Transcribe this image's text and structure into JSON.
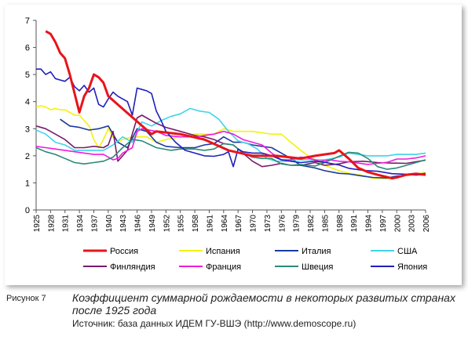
{
  "figure_label": "Рисунок 7",
  "caption": "Коэффициент суммарной рождаемости в некоторых развитых странах после 1925 года",
  "source": "Источник: база данных ИДЕМ ГУ-ВШЭ (http://www.demoscope.ru)",
  "chart_data": {
    "type": "line",
    "title": "",
    "xlabel": "",
    "ylabel": "",
    "xlim": [
      1925,
      2006
    ],
    "ylim": [
      0,
      7
    ],
    "yticks": [
      0,
      1,
      2,
      3,
      4,
      5,
      6,
      7
    ],
    "xticks": [
      1925,
      1928,
      1931,
      1934,
      1937,
      1940,
      1943,
      1946,
      1949,
      1952,
      1955,
      1958,
      1961,
      1964,
      1967,
      1970,
      1973,
      1976,
      1979,
      1982,
      1985,
      1988,
      1991,
      1994,
      1997,
      2000,
      2003,
      2006
    ],
    "grid": false,
    "legend_position": "bottom",
    "series": [
      {
        "name": "Россия",
        "color": "#e8141b",
        "width": 3,
        "x": [
          1927,
          1928,
          1929,
          1930,
          1931,
          1932,
          1933,
          1934,
          1935,
          1936,
          1937,
          1938,
          1939,
          1940,
          1949,
          1950,
          1955,
          1960,
          1965,
          1970,
          1975,
          1980,
          1983,
          1985,
          1987,
          1988,
          1990,
          1992,
          1994,
          1996,
          1999,
          2000,
          2002,
          2004,
          2006
        ],
        "y": [
          6.6,
          6.5,
          6.2,
          5.8,
          5.6,
          5.0,
          4.3,
          3.6,
          4.2,
          4.5,
          5.0,
          4.9,
          4.7,
          4.2,
          2.8,
          2.9,
          2.8,
          2.6,
          2.2,
          2.0,
          2.0,
          1.9,
          2.0,
          2.05,
          2.1,
          2.2,
          1.9,
          1.55,
          1.4,
          1.3,
          1.17,
          1.2,
          1.3,
          1.34,
          1.3
        ]
      },
      {
        "name": "Испания",
        "color": "#f2f20d",
        "width": 1.6,
        "x": [
          1925,
          1926,
          1927,
          1928,
          1929,
          1930,
          1931,
          1932,
          1933,
          1934,
          1935,
          1936,
          1937,
          1938,
          1939,
          1940,
          1941,
          1942,
          1943,
          1945,
          1948,
          1950,
          1952,
          1955,
          1958,
          1960,
          1962,
          1964,
          1966,
          1968,
          1970,
          1972,
          1974,
          1976,
          1978,
          1980,
          1982,
          1985,
          1988,
          1990,
          1993,
          1995,
          1998,
          2000,
          2003,
          2006
        ],
        "y": [
          3.8,
          3.85,
          3.8,
          3.7,
          3.75,
          3.7,
          3.7,
          3.6,
          3.5,
          3.5,
          3.3,
          3.1,
          2.6,
          2.3,
          2.6,
          3.0,
          2.7,
          2.5,
          2.6,
          2.7,
          2.7,
          2.5,
          2.6,
          2.7,
          2.8,
          2.8,
          2.8,
          3.0,
          2.9,
          2.9,
          2.9,
          2.85,
          2.8,
          2.8,
          2.5,
          2.2,
          1.95,
          1.65,
          1.45,
          1.36,
          1.27,
          1.17,
          1.15,
          1.22,
          1.3,
          1.38
        ]
      },
      {
        "name": "Италия",
        "color": "#1a3a9e",
        "width": 1.6,
        "x": [
          1930,
          1932,
          1934,
          1936,
          1938,
          1940,
          1942,
          1944,
          1946,
          1948,
          1950,
          1952,
          1955,
          1958,
          1960,
          1962,
          1964,
          1966,
          1968,
          1970,
          1972,
          1974,
          1976,
          1978,
          1980,
          1983,
          1985,
          1988,
          1990,
          1993,
          1995,
          1998,
          2000,
          2003,
          2006
        ],
        "y": [
          3.35,
          3.1,
          3.05,
          2.95,
          3.0,
          3.1,
          2.5,
          2.3,
          3.0,
          2.9,
          2.5,
          2.35,
          2.3,
          2.3,
          2.4,
          2.45,
          2.7,
          2.5,
          2.5,
          2.4,
          2.35,
          2.3,
          2.1,
          1.9,
          1.65,
          1.55,
          1.45,
          1.35,
          1.33,
          1.25,
          1.2,
          1.18,
          1.25,
          1.3,
          1.35
        ]
      },
      {
        "name": "США",
        "color": "#3fd4ea",
        "width": 1.6,
        "x": [
          1925,
          1927,
          1929,
          1931,
          1933,
          1935,
          1937,
          1939,
          1941,
          1943,
          1945,
          1947,
          1949,
          1951,
          1953,
          1955,
          1957,
          1959,
          1961,
          1963,
          1965,
          1967,
          1969,
          1971,
          1973,
          1975,
          1977,
          1979,
          1982,
          1985,
          1988,
          1990,
          1992,
          1994,
          1996,
          1998,
          2000,
          2002,
          2004,
          2006
        ],
        "y": [
          2.95,
          2.8,
          2.5,
          2.4,
          2.2,
          2.2,
          2.2,
          2.2,
          2.4,
          2.7,
          2.5,
          3.25,
          3.1,
          3.3,
          3.45,
          3.55,
          3.75,
          3.65,
          3.6,
          3.35,
          2.9,
          2.55,
          2.45,
          2.25,
          1.9,
          1.8,
          1.8,
          1.85,
          1.85,
          1.85,
          1.95,
          2.1,
          2.05,
          2.0,
          2.0,
          2.0,
          2.05,
          2.05,
          2.05,
          2.1
        ]
      },
      {
        "name": "Финляндия",
        "color": "#7a1a6a",
        "width": 1.6,
        "x": [
          1925,
          1927,
          1929,
          1931,
          1933,
          1935,
          1937,
          1939,
          1940,
          1941,
          1942,
          1944,
          1946,
          1947,
          1948,
          1950,
          1952,
          1955,
          1958,
          1960,
          1962,
          1964,
          1966,
          1968,
          1970,
          1972,
          1974,
          1976,
          1978,
          1980,
          1983,
          1985,
          1988,
          1990,
          1993,
          1996,
          1999,
          2002,
          2006
        ],
        "y": [
          3.1,
          3.0,
          2.8,
          2.6,
          2.3,
          2.3,
          2.35,
          2.3,
          2.4,
          2.9,
          1.8,
          2.2,
          3.4,
          3.5,
          3.4,
          3.2,
          3.05,
          2.9,
          2.75,
          2.7,
          2.6,
          2.45,
          2.4,
          2.1,
          1.8,
          1.6,
          1.65,
          1.72,
          1.65,
          1.65,
          1.75,
          1.65,
          1.7,
          1.78,
          1.8,
          1.75,
          1.73,
          1.72,
          1.84
        ]
      },
      {
        "name": "Франция",
        "color": "#ee1cdc",
        "width": 1.6,
        "x": [
          1925,
          1927,
          1929,
          1931,
          1933,
          1935,
          1937,
          1939,
          1940,
          1941,
          1942,
          1943,
          1945,
          1946,
          1947,
          1950,
          1952,
          1955,
          1958,
          1960,
          1962,
          1964,
          1966,
          1968,
          1970,
          1972,
          1974,
          1976,
          1978,
          1980,
          1982,
          1984,
          1986,
          1988,
          1990,
          1992,
          1994,
          1996,
          1998,
          2000,
          2002,
          2004,
          2006
        ],
        "y": [
          2.35,
          2.3,
          2.25,
          2.2,
          2.15,
          2.1,
          2.05,
          2.05,
          1.95,
          1.85,
          1.9,
          2.1,
          2.3,
          2.9,
          3.0,
          2.9,
          2.75,
          2.7,
          2.7,
          2.75,
          2.8,
          2.9,
          2.8,
          2.6,
          2.5,
          2.4,
          2.1,
          1.85,
          1.85,
          1.95,
          1.9,
          1.8,
          1.85,
          1.8,
          1.78,
          1.73,
          1.68,
          1.72,
          1.76,
          1.88,
          1.88,
          1.92,
          2.0
        ]
      },
      {
        "name": "Швеция",
        "color": "#2a8a78",
        "width": 1.6,
        "x": [
          1925,
          1927,
          1929,
          1931,
          1933,
          1935,
          1937,
          1939,
          1941,
          1943,
          1945,
          1947,
          1950,
          1953,
          1955,
          1958,
          1960,
          1962,
          1964,
          1966,
          1968,
          1970,
          1972,
          1974,
          1976,
          1978,
          1980,
          1983,
          1985,
          1988,
          1990,
          1992,
          1994,
          1996,
          1998,
          2000,
          2002,
          2004,
          2006
        ],
        "y": [
          2.3,
          2.15,
          2.05,
          1.9,
          1.75,
          1.7,
          1.75,
          1.8,
          1.95,
          2.3,
          2.6,
          2.55,
          2.3,
          2.2,
          2.25,
          2.25,
          2.2,
          2.25,
          2.45,
          2.4,
          2.1,
          1.95,
          1.9,
          1.9,
          1.7,
          1.65,
          1.68,
          1.62,
          1.75,
          1.98,
          2.13,
          2.1,
          1.9,
          1.6,
          1.5,
          1.55,
          1.65,
          1.75,
          1.85
        ]
      },
      {
        "name": "Япония",
        "color": "#1f1fbd",
        "width": 1.6,
        "x": [
          1925,
          1926,
          1927,
          1928,
          1929,
          1930,
          1931,
          1932,
          1933,
          1934,
          1935,
          1936,
          1937,
          1938,
          1939,
          1940,
          1941,
          1942,
          1943,
          1944,
          1945,
          1946,
          1947,
          1948,
          1949,
          1950,
          1951,
          1952,
          1954,
          1956,
          1958,
          1960,
          1962,
          1964,
          1965,
          1966,
          1967,
          1968,
          1970,
          1972,
          1974,
          1976,
          1978,
          1980,
          1983,
          1985,
          1988,
          1990,
          1993,
          1996,
          1999,
          2002,
          2004,
          2006
        ],
        "y": [
          5.2,
          5.2,
          5.0,
          5.1,
          4.85,
          4.8,
          4.75,
          4.9,
          4.55,
          4.4,
          4.6,
          4.35,
          4.5,
          3.9,
          3.8,
          4.1,
          4.35,
          4.2,
          4.1,
          4.0,
          3.5,
          4.5,
          4.45,
          4.4,
          4.3,
          3.65,
          3.3,
          2.9,
          2.5,
          2.2,
          2.1,
          2.0,
          1.98,
          2.05,
          2.15,
          1.6,
          2.25,
          2.15,
          2.1,
          2.1,
          2.0,
          1.85,
          1.8,
          1.75,
          1.8,
          1.76,
          1.66,
          1.54,
          1.46,
          1.43,
          1.34,
          1.32,
          1.29,
          1.32
        ]
      }
    ]
  }
}
